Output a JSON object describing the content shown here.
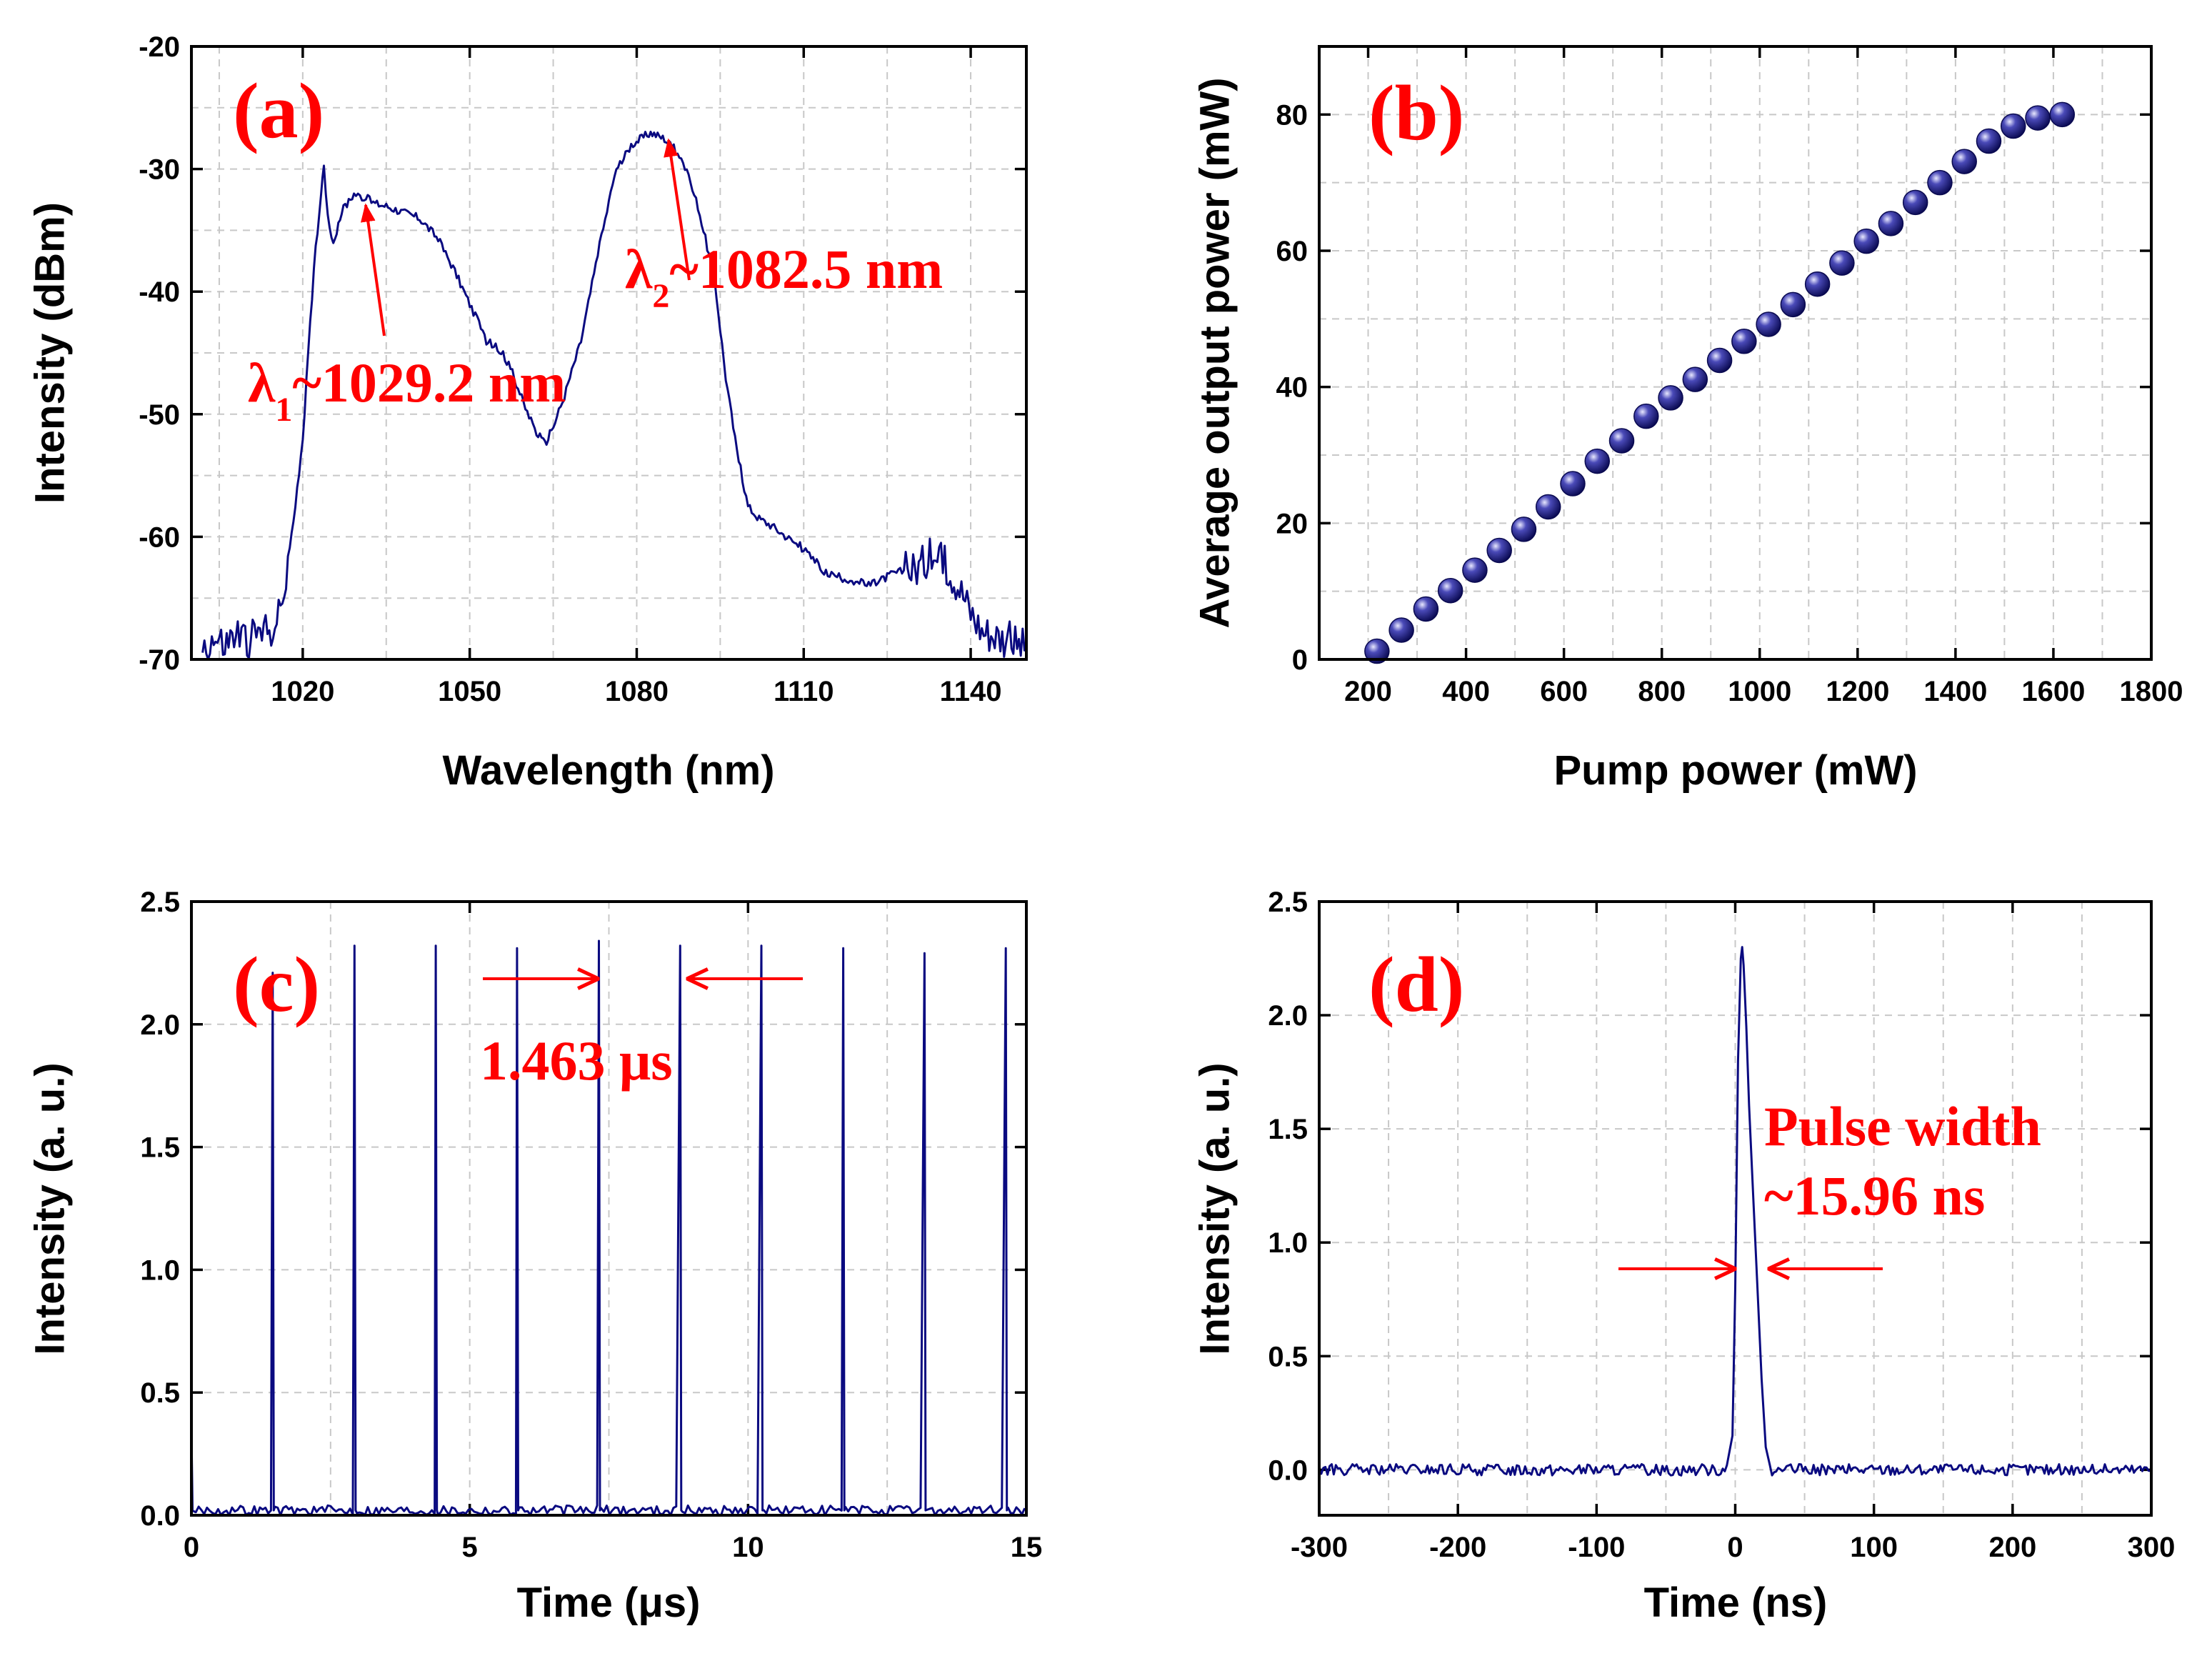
{
  "colors": {
    "trace": "#0a0a80",
    "annotation": "#ff0000",
    "marker": "#1a1a7a"
  },
  "chart_data": [
    {
      "id": "a",
      "type": "line",
      "panel_label": "(a)",
      "xlabel": "Wavelength (nm)",
      "ylabel": "Intensity (dBm)",
      "xlim": [
        1000,
        1150
      ],
      "ylim": [
        -70,
        -20
      ],
      "xticks": [
        1020,
        1050,
        1080,
        1110,
        1140
      ],
      "yticks": [
        -70,
        -60,
        -50,
        -40,
        -30,
        -20
      ],
      "xgrid": [
        1005,
        1020,
        1035,
        1050,
        1065,
        1080,
        1095,
        1110,
        1125,
        1140
      ],
      "ygrid": [
        -65,
        -60,
        -55,
        -50,
        -45,
        -40,
        -35,
        -30,
        -25
      ],
      "series": [
        {
          "name": "spectrum",
          "x": [
            1002,
            1004,
            1006,
            1008,
            1010,
            1012,
            1014,
            1016,
            1018,
            1020,
            1022,
            1023.3,
            1023.8,
            1024.5,
            1025.5,
            1027,
            1029.2,
            1031,
            1033,
            1035,
            1038,
            1041,
            1044,
            1047,
            1050,
            1053,
            1056,
            1058,
            1060,
            1062,
            1063.5,
            1065,
            1067,
            1070,
            1073,
            1076,
            1079,
            1082.5,
            1085,
            1088,
            1091,
            1094,
            1096,
            1098,
            1100,
            1102,
            1104,
            1107,
            1110,
            1114,
            1118,
            1122,
            1126,
            1130,
            1133,
            1136,
            1138,
            1140,
            1142,
            1145,
            1150
          ],
          "y": [
            -69,
            -68.5,
            -69,
            -68,
            -68.5,
            -68,
            -67.5,
            -66.5,
            -60,
            -52,
            -38,
            -32,
            -29.5,
            -34,
            -36,
            -33.5,
            -32,
            -32.3,
            -32.8,
            -33,
            -33.5,
            -34,
            -35.5,
            -38,
            -41,
            -44,
            -45,
            -47,
            -49.5,
            -51.5,
            -52.5,
            -51,
            -48.5,
            -44,
            -37,
            -30.5,
            -28,
            -27,
            -27.5,
            -29,
            -33,
            -39,
            -47,
            -53,
            -57.5,
            -58.5,
            -59,
            -60,
            -61,
            -63,
            -63.5,
            -64,
            -63,
            -62.5,
            -61.5,
            -62.5,
            -64,
            -66,
            -67.5,
            -68,
            -69
          ]
        }
      ],
      "annotations": [
        {
          "text_main": "λ",
          "sub": "1",
          "text_rest": "~1029.2 nm",
          "target_x": 1029.2,
          "target_y": -32.2
        },
        {
          "text_main": "λ",
          "sub": "2",
          "text_rest": "~1082.5 nm",
          "target_x": 1082.5,
          "target_y": -27.2
        }
      ]
    },
    {
      "id": "b",
      "type": "scatter",
      "panel_label": "(b)",
      "xlabel": "Pump power (mW)",
      "ylabel": "Average output power (mW)",
      "xlim": [
        100,
        1800
      ],
      "ylim": [
        0,
        90
      ],
      "xticks": [
        200,
        400,
        600,
        800,
        1000,
        1200,
        1400,
        1600,
        1800
      ],
      "yticks": [
        0,
        20,
        40,
        60,
        80
      ],
      "xgrid": [
        200,
        300,
        400,
        500,
        600,
        700,
        800,
        900,
        1000,
        1100,
        1200,
        1300,
        1400,
        1500,
        1600,
        1700
      ],
      "ygrid": [
        10,
        20,
        30,
        40,
        50,
        60,
        70,
        80
      ],
      "series": [
        {
          "name": "output power",
          "x": [
            218,
            268,
            318,
            368,
            418,
            468,
            518,
            568,
            618,
            668,
            718,
            768,
            818,
            868,
            918,
            968,
            1018,
            1068,
            1118,
            1168,
            1218,
            1268,
            1318,
            1368,
            1418,
            1468,
            1518,
            1568,
            1618
          ],
          "y": [
            1.2,
            4.3,
            7.4,
            10.1,
            13.1,
            16.0,
            19.1,
            22.4,
            25.8,
            29.1,
            32.1,
            35.7,
            38.4,
            41.1,
            43.9,
            46.7,
            49.2,
            52.1,
            55.1,
            58.2,
            61.4,
            64.0,
            67.1,
            70.0,
            73.1,
            76.1,
            78.3,
            79.5,
            80.0
          ]
        }
      ]
    },
    {
      "id": "c",
      "type": "line",
      "panel_label": "(c)",
      "xlabel": "Time (μs)",
      "ylabel": "Intensity (a. u.)",
      "xlim": [
        0,
        15
      ],
      "ylim": [
        0,
        2.5
      ],
      "xticks": [
        0,
        5,
        10,
        15
      ],
      "yticks": [
        0.0,
        0.5,
        1.0,
        1.5,
        2.0,
        2.5
      ],
      "xgrid": [
        2.5,
        5,
        7.5,
        10,
        12.5
      ],
      "ygrid": [
        0.5,
        1.0,
        1.5,
        2.0
      ],
      "pulses_t": [
        1.46,
        2.93,
        4.39,
        5.85,
        7.32,
        8.78,
        10.24,
        11.71,
        13.17,
        14.63
      ],
      "pulses_amp": [
        2.21,
        2.32,
        2.32,
        2.31,
        2.34,
        2.32,
        2.32,
        2.31,
        2.29,
        2.31
      ],
      "baseline": 0.02,
      "annotation": {
        "text": "1.463 μs",
        "period_start": 7.32,
        "period_end": 8.78,
        "arrow_y": 2.2
      }
    },
    {
      "id": "d",
      "type": "line",
      "panel_label": "(d)",
      "xlabel": "Time (ns)",
      "ylabel": "Intensity (a. u.)",
      "xlim": [
        -300,
        300
      ],
      "ylim": [
        -0.2,
        2.5
      ],
      "xticks": [
        -300,
        -200,
        -100,
        0,
        100,
        200,
        300
      ],
      "yticks": [
        0.0,
        0.5,
        1.0,
        1.5,
        2.0,
        2.5
      ],
      "xgrid": [
        -250,
        -200,
        -150,
        -100,
        -50,
        0,
        50,
        100,
        150,
        200,
        250
      ],
      "ygrid": [
        0.0,
        0.5,
        1.0,
        1.5,
        2.0
      ],
      "pulse": {
        "x": [
          -6,
          -2,
          0,
          2,
          4,
          5,
          6,
          8,
          10,
          13,
          16,
          19,
          22,
          25
        ],
        "y": [
          0.02,
          0.15,
          0.8,
          1.8,
          2.25,
          2.3,
          2.22,
          1.95,
          1.6,
          1.2,
          0.8,
          0.4,
          0.1,
          0.02
        ]
      },
      "baseline": 0.0,
      "annotation": {
        "line1": "Pulse width",
        "line2": "~15.96 ns",
        "fwhm_start": -1,
        "fwhm_end": 21,
        "arrow_y": 0.85
      }
    }
  ]
}
